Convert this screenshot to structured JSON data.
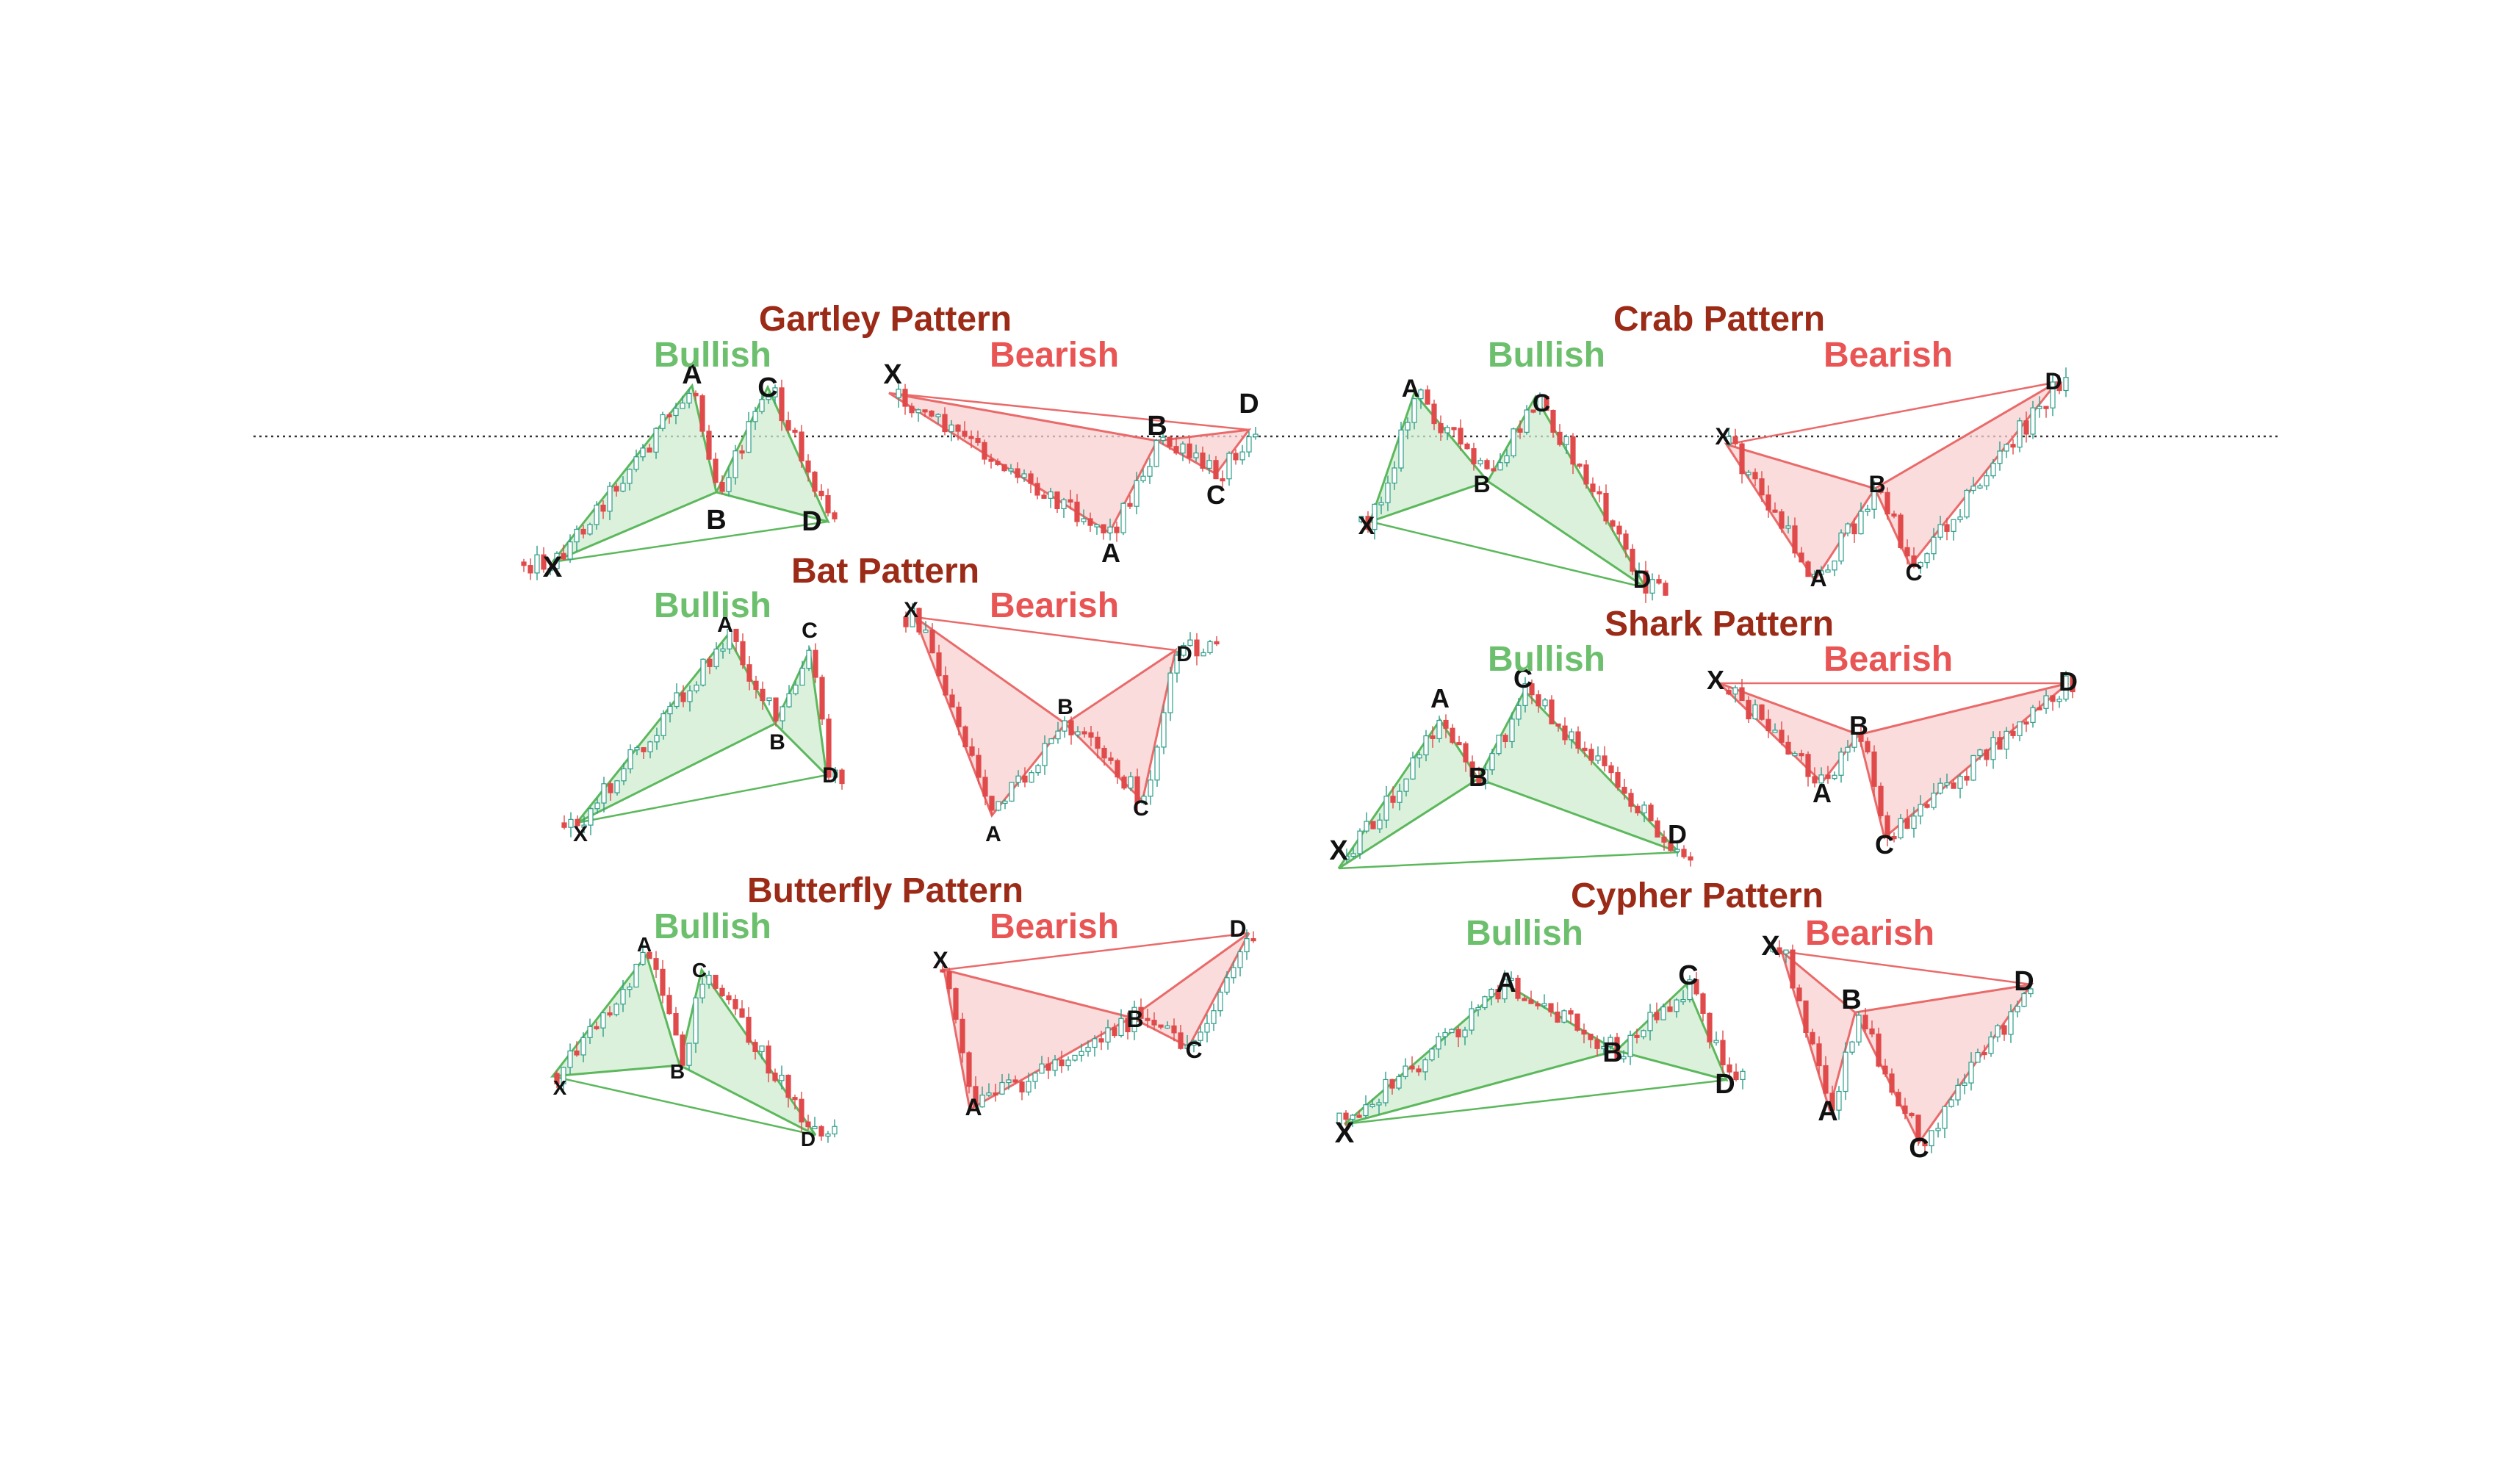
{
  "colors": {
    "title": "#9b2a17",
    "bullish_text": "#6cbf6c",
    "bearish_text": "#e95454",
    "bull_fill": "#cfeccf",
    "bull_line": "#5cb85c",
    "bear_fill": "#f8d0d0",
    "bear_line": "#ea6a6a",
    "candle_up": "#2e9e8a",
    "candle_down": "#e04a4a",
    "dotted_line": "#333333"
  },
  "patterns": [
    {
      "title": "Gartley Pattern",
      "bullish_label": "Bullish",
      "bearish_label": "Bearish",
      "bullish_points": [
        {
          "label": "X"
        },
        {
          "label": "A"
        },
        {
          "label": "B"
        },
        {
          "label": "C"
        },
        {
          "label": "D"
        }
      ],
      "bearish_points": [
        {
          "label": "X"
        },
        {
          "label": "A"
        },
        {
          "label": "B"
        },
        {
          "label": "C"
        },
        {
          "label": "D"
        }
      ]
    },
    {
      "title": "Crab Pattern",
      "bullish_label": "Bullish",
      "bearish_label": "Bearish",
      "bullish_points": [
        {
          "label": "X"
        },
        {
          "label": "A"
        },
        {
          "label": "B"
        },
        {
          "label": "C"
        },
        {
          "label": "D"
        }
      ],
      "bearish_points": [
        {
          "label": "X"
        },
        {
          "label": "A"
        },
        {
          "label": "B"
        },
        {
          "label": "C"
        },
        {
          "label": "D"
        }
      ]
    },
    {
      "title": "Bat Pattern",
      "bullish_label": "Bullish",
      "bearish_label": "Bearish",
      "bullish_points": [
        {
          "label": "X"
        },
        {
          "label": "A"
        },
        {
          "label": "B"
        },
        {
          "label": "C"
        },
        {
          "label": "D"
        }
      ],
      "bearish_points": [
        {
          "label": "X"
        },
        {
          "label": "A"
        },
        {
          "label": "B"
        },
        {
          "label": "C"
        },
        {
          "label": "D"
        }
      ]
    },
    {
      "title": "Shark Pattern",
      "bullish_label": "Bullish",
      "bearish_label": "Bearish",
      "bullish_points": [
        {
          "label": "X"
        },
        {
          "label": "A"
        },
        {
          "label": "B"
        },
        {
          "label": "C"
        },
        {
          "label": "D"
        }
      ],
      "bearish_points": [
        {
          "label": "X"
        },
        {
          "label": "A"
        },
        {
          "label": "B"
        },
        {
          "label": "C"
        },
        {
          "label": "D"
        }
      ]
    },
    {
      "title": "Butterfly Pattern",
      "bullish_label": "Bullish",
      "bearish_label": "Bearish",
      "bullish_points": [
        {
          "label": "X"
        },
        {
          "label": "A"
        },
        {
          "label": "B"
        },
        {
          "label": "C"
        },
        {
          "label": "D"
        }
      ],
      "bearish_points": [
        {
          "label": "X"
        },
        {
          "label": "A"
        },
        {
          "label": "B"
        },
        {
          "label": "C"
        },
        {
          "label": "D"
        }
      ]
    },
    {
      "title": "Cypher Pattern",
      "bullish_label": "Bullish",
      "bearish_label": "Bearish",
      "bullish_points": [
        {
          "label": "X"
        },
        {
          "label": "A"
        },
        {
          "label": "B"
        },
        {
          "label": "C"
        },
        {
          "label": "D"
        }
      ],
      "bearish_points": [
        {
          "label": "X"
        },
        {
          "label": "A"
        },
        {
          "label": "B"
        },
        {
          "label": "C"
        },
        {
          "label": "D"
        }
      ]
    }
  ]
}
